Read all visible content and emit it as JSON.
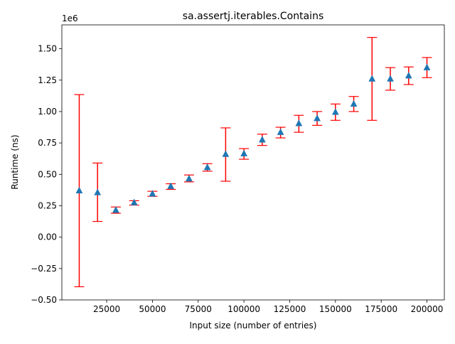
{
  "chart_data": {
    "type": "scatter",
    "title": "sa.assertj.iterables.Contains",
    "xlabel": "Input size (number of entries)",
    "ylabel": "Runtime (ns)",
    "y_offset_label": "1e6",
    "y_scale_factor": 1000000,
    "xlim": [
      500,
      209500
    ],
    "ylim": [
      -0.5,
      1.69
    ],
    "x_ticks": [
      25000,
      50000,
      75000,
      100000,
      125000,
      150000,
      175000,
      200000
    ],
    "x_tick_labels": [
      "25000",
      "50000",
      "75000",
      "100000",
      "125000",
      "150000",
      "175000",
      "200000"
    ],
    "y_ticks": [
      -0.5,
      -0.25,
      0.0,
      0.25,
      0.5,
      0.75,
      1.0,
      1.25,
      1.5
    ],
    "y_tick_labels": [
      "−0.50",
      "−0.25",
      "0.00",
      "0.25",
      "0.50",
      "0.75",
      "1.00",
      "1.25",
      "1.50"
    ],
    "grid": false,
    "legend": "none",
    "marker": "triangle",
    "marker_color": "#1f77b4",
    "errorbar_color": "#ff0000",
    "series": [
      {
        "x": [
          10000,
          20000,
          30000,
          40000,
          50000,
          60000,
          70000,
          80000,
          90000,
          100000,
          110000,
          120000,
          130000,
          140000,
          150000,
          160000,
          170000,
          180000,
          190000,
          200000
        ],
        "y": [
          0.37,
          0.355,
          0.215,
          0.275,
          0.345,
          0.405,
          0.465,
          0.555,
          0.66,
          0.665,
          0.775,
          0.835,
          0.905,
          0.945,
          0.995,
          1.06,
          1.26,
          1.26,
          1.285,
          1.35
        ],
        "y_err_low": [
          -0.395,
          0.125,
          0.19,
          0.255,
          0.325,
          0.38,
          0.44,
          0.525,
          0.445,
          0.62,
          0.73,
          0.79,
          0.835,
          0.89,
          0.93,
          1.0,
          0.93,
          1.17,
          1.215,
          1.27
        ],
        "y_err_high": [
          1.135,
          0.59,
          0.24,
          0.29,
          0.365,
          0.425,
          0.495,
          0.585,
          0.87,
          0.705,
          0.82,
          0.875,
          0.97,
          1.0,
          1.06,
          1.12,
          1.59,
          1.35,
          1.355,
          1.43
        ]
      }
    ]
  }
}
